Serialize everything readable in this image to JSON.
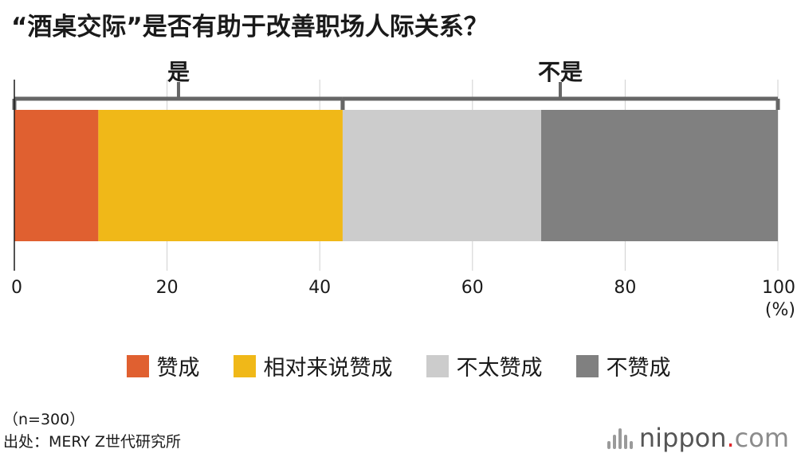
{
  "title": "“酒桌交际”是否有助于改善职场人际关系？",
  "chart_data": {
    "type": "bar",
    "orientation": "horizontal",
    "stacked": true,
    "series": [
      {
        "name": "赞成",
        "value": 11,
        "color": "#e06030"
      },
      {
        "name": "相对来说赞成",
        "value": 32,
        "color": "#f0b818"
      },
      {
        "name": "不太赞成",
        "value": 26,
        "color": "#cccccc"
      },
      {
        "name": "不赞成",
        "value": 31,
        "color": "#808080"
      }
    ],
    "groups": [
      {
        "label": "是",
        "from": 0,
        "to": 43
      },
      {
        "label": "不是",
        "from": 43,
        "to": 100
      }
    ],
    "xlim": [
      0,
      100
    ],
    "xticks": [
      "0",
      "20",
      "40",
      "60",
      "80",
      "100"
    ],
    "xunit": "(%)",
    "grid": true,
    "legend_position": "bottom"
  },
  "notes": {
    "sample": "（n=300）",
    "source": "出处：MERY Z世代研究所"
  },
  "logo": {
    "name": "nippon",
    "dot": ".",
    "suffix": "com"
  }
}
